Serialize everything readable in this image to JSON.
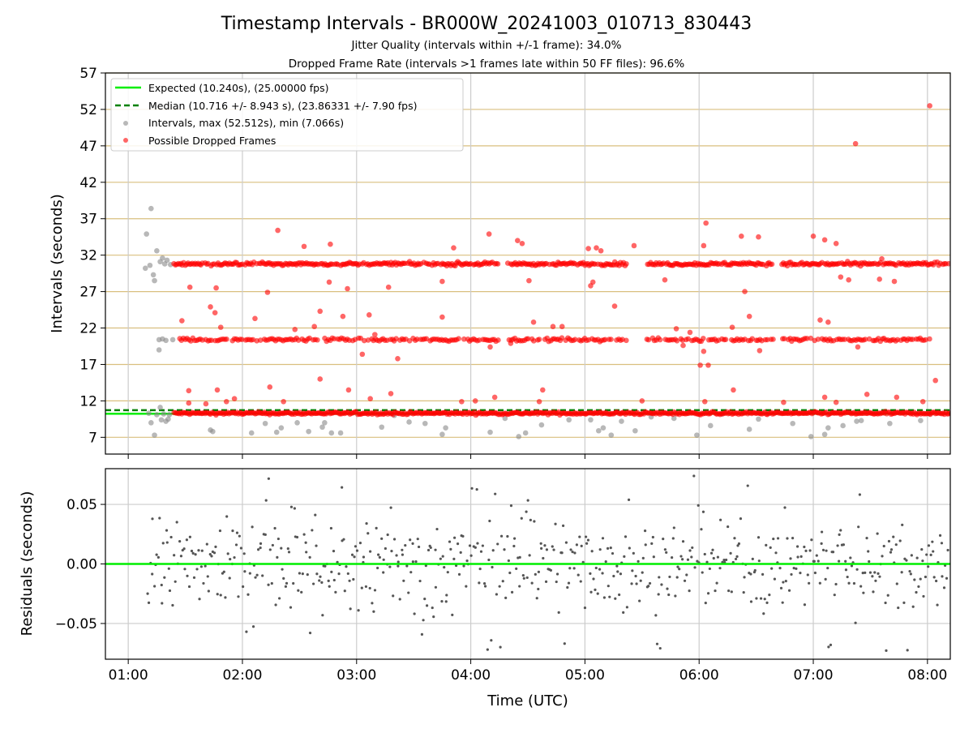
{
  "chart_data": [
    {
      "type": "scatter",
      "title": "Timestamp Intervals - BR000W_20241003_010713_830443",
      "subtitle_1": "Jitter Quality (intervals within +/-1 frame): 34.0%",
      "subtitle_2": "Dropped Frame Rate (intervals >1 frames late within 50 FF files): 96.6%",
      "xlabel": "",
      "ylabel": "Intervals (seconds)",
      "xlim_hours": [
        0.8,
        8.2
      ],
      "ylim": [
        4.7,
        57
      ],
      "yticks": [
        7,
        12,
        17,
        22,
        27,
        32,
        37,
        42,
        47,
        52,
        57
      ],
      "ytick_labels": [
        "7",
        "12",
        "17",
        "22",
        "27",
        "32",
        "37",
        "42",
        "47",
        "52",
        "57"
      ],
      "grid": "horizontal and vertical",
      "hline_color": "#d9bf7f",
      "legend_position": "upper-left",
      "legend": [
        {
          "label": "Expected (10.240s), (25.00000 fps)",
          "marker": "line",
          "color": "#00ee00"
        },
        {
          "label": "Median (10.716 +/- 8.943 s), (23.86331 +/- 7.90 fps)",
          "marker": "dashed-line",
          "color": "#008000"
        },
        {
          "label": "Intervals, max (52.512s), min (7.066s)",
          "marker": "dot",
          "color": "#888888"
        },
        {
          "label": "Possible Dropped Frames",
          "marker": "dot",
          "color": "#ff0000"
        }
      ],
      "expected_line": 10.24,
      "median_line": 10.716,
      "series": [
        {
          "name": "Intervals, max (52.512s), min (7.066s)",
          "color": "#888888",
          "points": [
            [
              1.16,
              34.9
            ],
            [
              1.2,
              38.4
            ],
            [
              1.15,
              30.2
            ],
            [
              1.19,
              30.6
            ],
            [
              1.22,
              29.3
            ],
            [
              1.23,
              28.5
            ],
            [
              1.25,
              32.6
            ],
            [
              1.28,
              31.1
            ],
            [
              1.3,
              31.6
            ],
            [
              1.32,
              30.8
            ],
            [
              1.34,
              31.3
            ],
            [
              1.37,
              30.7
            ],
            [
              1.27,
              20.4
            ],
            [
              1.3,
              20.5
            ],
            [
              1.33,
              20.3
            ],
            [
              1.27,
              19.0
            ],
            [
              1.39,
              20.4
            ],
            [
              1.18,
              10.3
            ],
            [
              1.2,
              9.0
            ],
            [
              1.23,
              7.3
            ],
            [
              1.25,
              10.1
            ],
            [
              1.28,
              11.1
            ],
            [
              1.29,
              9.4
            ],
            [
              1.31,
              10.2
            ],
            [
              1.33,
              9.2
            ],
            [
              1.35,
              9.5
            ],
            [
              1.36,
              10.1
            ],
            [
              1.72,
              8.0
            ],
            [
              1.74,
              7.8
            ],
            [
              2.08,
              7.6
            ],
            [
              2.2,
              8.9
            ],
            [
              2.3,
              7.7
            ],
            [
              2.34,
              8.3
            ],
            [
              2.48,
              9.0
            ],
            [
              2.58,
              7.8
            ],
            [
              2.7,
              8.4
            ],
            [
              2.72,
              9.0
            ],
            [
              2.78,
              7.6
            ],
            [
              2.86,
              7.6
            ],
            [
              3.22,
              8.4
            ],
            [
              3.33,
              10.0
            ],
            [
              3.46,
              9.1
            ],
            [
              3.6,
              8.9
            ],
            [
              3.75,
              7.4
            ],
            [
              3.78,
              8.3
            ],
            [
              4.17,
              7.7
            ],
            [
              4.3,
              9.6
            ],
            [
              4.42,
              7.1
            ],
            [
              4.48,
              7.6
            ],
            [
              4.62,
              8.7
            ],
            [
              4.86,
              9.4
            ],
            [
              5.05,
              9.4
            ],
            [
              5.12,
              7.9
            ],
            [
              5.16,
              8.3
            ],
            [
              5.23,
              7.3
            ],
            [
              5.32,
              9.2
            ],
            [
              5.44,
              7.9
            ],
            [
              5.58,
              9.8
            ],
            [
              5.78,
              9.6
            ],
            [
              5.98,
              7.3
            ],
            [
              6.1,
              8.6
            ],
            [
              6.2,
              10.2
            ],
            [
              6.44,
              8.1
            ],
            [
              6.52,
              9.5
            ],
            [
              6.82,
              8.9
            ],
            [
              6.98,
              7.1
            ],
            [
              7.1,
              7.4
            ],
            [
              7.13,
              8.3
            ],
            [
              7.26,
              8.6
            ],
            [
              7.38,
              9.2
            ],
            [
              7.42,
              9.3
            ],
            [
              7.67,
              8.9
            ],
            [
              7.94,
              9.3
            ],
            [
              8.02,
              10.2
            ]
          ]
        },
        {
          "name": "Possible Dropped Frames",
          "color": "#ff0000",
          "points": [
            [
              8.02,
              52.5
            ],
            [
              7.37,
              47.3
            ],
            [
              6.06,
              36.4
            ],
            [
              2.31,
              35.4
            ],
            [
              4.16,
              34.9
            ],
            [
              4.41,
              34.0
            ],
            [
              6.37,
              34.6
            ],
            [
              6.52,
              34.5
            ],
            [
              7.0,
              34.6
            ],
            [
              7.1,
              34.1
            ],
            [
              7.2,
              33.6
            ],
            [
              6.04,
              33.3
            ],
            [
              2.54,
              33.2
            ],
            [
              2.77,
              33.5
            ],
            [
              3.85,
              33.0
            ],
            [
              4.45,
              33.6
            ],
            [
              5.03,
              32.9
            ],
            [
              5.1,
              33.0
            ],
            [
              5.14,
              32.6
            ],
            [
              5.43,
              33.3
            ],
            [
              7.6,
              31.5
            ],
            [
              5.07,
              28.3
            ],
            [
              5.7,
              28.6
            ],
            [
              5.05,
              27.8
            ],
            [
              1.54,
              27.6
            ],
            [
              1.77,
              27.5
            ],
            [
              2.22,
              26.9
            ],
            [
              2.76,
              28.3
            ],
            [
              2.92,
              27.4
            ],
            [
              3.28,
              27.6
            ],
            [
              3.75,
              28.4
            ],
            [
              4.51,
              28.5
            ],
            [
              6.4,
              27.0
            ],
            [
              7.24,
              29.0
            ],
            [
              7.31,
              28.6
            ],
            [
              7.58,
              28.7
            ],
            [
              7.71,
              28.4
            ],
            [
              1.72,
              24.9
            ],
            [
              1.76,
              24.1
            ],
            [
              2.11,
              23.3
            ],
            [
              2.68,
              24.3
            ],
            [
              2.88,
              23.6
            ],
            [
              3.11,
              23.8
            ],
            [
              3.75,
              23.5
            ],
            [
              5.26,
              25.0
            ],
            [
              6.44,
              23.6
            ],
            [
              7.06,
              23.1
            ],
            [
              7.13,
              22.8
            ],
            [
              1.47,
              23.0
            ],
            [
              1.81,
              22.1
            ],
            [
              2.46,
              21.8
            ],
            [
              2.63,
              22.2
            ],
            [
              3.16,
              21.1
            ],
            [
              4.55,
              22.8
            ],
            [
              4.72,
              22.2
            ],
            [
              4.8,
              22.2
            ],
            [
              5.8,
              21.9
            ],
            [
              5.92,
              21.4
            ],
            [
              6.29,
              22.1
            ],
            [
              3.05,
              18.4
            ],
            [
              3.36,
              17.8
            ],
            [
              4.17,
              19.4
            ],
            [
              4.35,
              19.9
            ],
            [
              5.86,
              19.6
            ],
            [
              6.01,
              16.9
            ],
            [
              6.04,
              18.8
            ],
            [
              6.08,
              16.9
            ],
            [
              6.53,
              18.9
            ],
            [
              7.39,
              19.4
            ],
            [
              1.53,
              13.4
            ],
            [
              1.78,
              13.5
            ],
            [
              2.24,
              13.9
            ],
            [
              2.68,
              15.0
            ],
            [
              2.93,
              13.5
            ],
            [
              3.3,
              13.0
            ],
            [
              4.21,
              12.5
            ],
            [
              4.63,
              13.5
            ],
            [
              6.3,
              13.5
            ],
            [
              7.1,
              12.5
            ],
            [
              7.47,
              12.9
            ],
            [
              7.73,
              12.5
            ],
            [
              8.07,
              14.8
            ],
            [
              1.53,
              11.7
            ],
            [
              1.68,
              11.6
            ],
            [
              1.86,
              11.9
            ],
            [
              1.93,
              12.3
            ],
            [
              2.36,
              11.9
            ],
            [
              3.12,
              12.3
            ],
            [
              3.92,
              11.9
            ],
            [
              4.04,
              12.0
            ],
            [
              4.6,
              11.9
            ],
            [
              5.5,
              12.0
            ],
            [
              6.05,
              11.9
            ],
            [
              6.74,
              11.8
            ],
            [
              7.2,
              11.8
            ],
            [
              7.96,
              11.9
            ]
          ],
          "band_levels": [
            10.3,
            20.4,
            30.8
          ],
          "band_ranges": [
            [
              1.4,
              8.2
            ],
            [
              1.45,
              8.02
            ],
            [
              1.4,
              8.2
            ]
          ],
          "band_gaps": [
            [
              4.25,
              4.31
            ],
            [
              5.37,
              5.53
            ],
            [
              6.65,
              6.72
            ]
          ]
        }
      ]
    },
    {
      "type": "scatter",
      "title": "",
      "xlabel": "Time (UTC)",
      "ylabel": "Residuals (seconds)",
      "xlim_hours": [
        0.8,
        8.2
      ],
      "ylim": [
        -0.08,
        0.08
      ],
      "yticks": [
        -0.05,
        0.0,
        0.05
      ],
      "ytick_labels": [
        "−0.05",
        "0.00",
        "0.05"
      ],
      "xticks": [
        1,
        2,
        3,
        4,
        5,
        6,
        7,
        8
      ],
      "xtick_labels": [
        "01:00",
        "02:00",
        "03:00",
        "04:00",
        "05:00",
        "06:00",
        "07:00",
        "08:00"
      ],
      "grid": "horizontal and vertical",
      "zero_line_color": "#00ee00",
      "series": [
        {
          "name": "",
          "color": "#555555",
          "x_range_hours": [
            1.17,
            8.18
          ],
          "spread_seconds": 0.075,
          "count": 600
        }
      ]
    }
  ]
}
